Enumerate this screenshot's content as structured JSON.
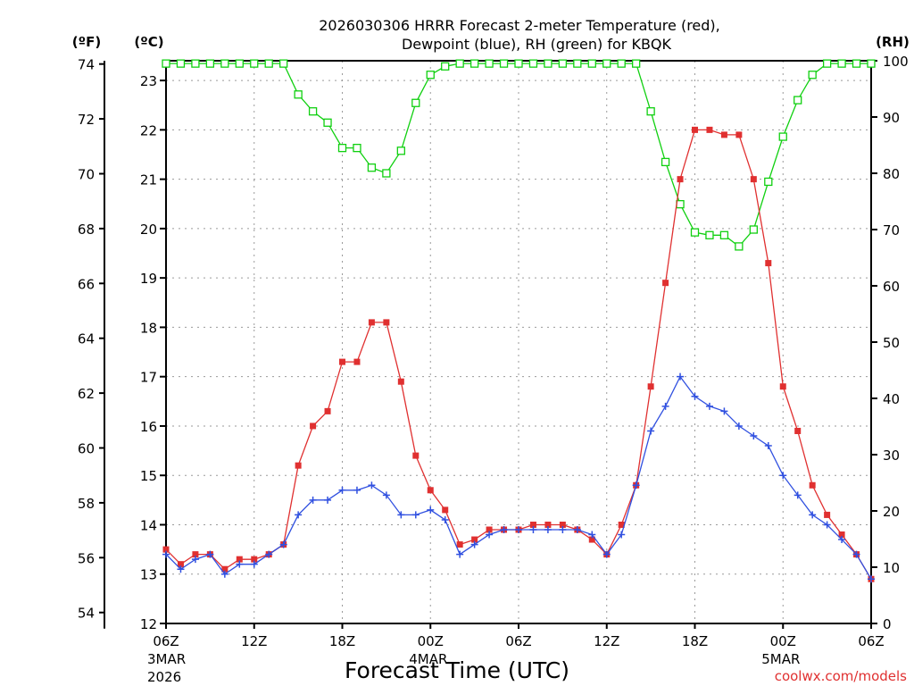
{
  "chart_data": {
    "type": "line",
    "title_lines": [
      "2026030306 HRRR Forecast 2-meter Temperature (red),",
      "Dewpoint (blue), RH (green) for KBQK"
    ],
    "xlabel": "Forecast Time (UTC)",
    "credit": "coolwx.com/models",
    "units": {
      "fahrenheit": "(ºF)",
      "celsius": "(ºC)",
      "rh": "(RH)"
    },
    "x_range_hours": [
      0,
      48
    ],
    "x_ticks": [
      {
        "hour": 0,
        "label": "06Z",
        "date_label": "3MAR",
        "year_label": "2026"
      },
      {
        "hour": 6,
        "label": "12Z"
      },
      {
        "hour": 12,
        "label": "18Z"
      },
      {
        "hour": 18,
        "label": "00Z",
        "date_label": "4MAR"
      },
      {
        "hour": 24,
        "label": "06Z"
      },
      {
        "hour": 30,
        "label": "12Z"
      },
      {
        "hour": 36,
        "label": "18Z"
      },
      {
        "hour": 42,
        "label": "00Z",
        "date_label": "5MAR"
      },
      {
        "hour": 48,
        "label": "06Z"
      }
    ],
    "y_celsius": {
      "range": [
        12,
        23.4
      ],
      "ticks": [
        "12",
        "13",
        "14",
        "15",
        "16",
        "17",
        "18",
        "19",
        "20",
        "21",
        "22",
        "23"
      ]
    },
    "y_fahrenheit": {
      "ticks": [
        "54",
        "56",
        "58",
        "60",
        "62",
        "64",
        "66",
        "68",
        "70",
        "72",
        "74"
      ]
    },
    "y_rh": {
      "range": [
        0,
        100
      ],
      "ticks": [
        "0",
        "10",
        "20",
        "30",
        "40",
        "50",
        "60",
        "70",
        "80",
        "90",
        "100"
      ]
    },
    "hours": [
      0,
      1,
      2,
      3,
      4,
      5,
      6,
      7,
      8,
      9,
      10,
      11,
      12,
      13,
      14,
      15,
      16,
      17,
      18,
      19,
      20,
      21,
      22,
      23,
      24,
      25,
      26,
      27,
      28,
      29,
      30,
      31,
      32,
      33,
      34,
      35,
      36,
      37,
      38,
      39,
      40,
      41,
      42,
      43,
      44,
      45,
      46,
      47,
      48
    ],
    "series": [
      {
        "name": "Temperature (red)",
        "unit": "C",
        "color": "#e03030",
        "marker": "filled-square",
        "values": [
          13.5,
          13.2,
          13.4,
          13.4,
          13.1,
          13.3,
          13.3,
          13.4,
          13.6,
          15.2,
          16.0,
          16.3,
          17.3,
          17.3,
          18.1,
          18.1,
          16.9,
          15.4,
          14.7,
          14.3,
          13.6,
          13.7,
          13.9,
          13.9,
          13.9,
          14.0,
          14.0,
          14.0,
          13.9,
          13.7,
          13.4,
          14.0,
          14.8,
          16.8,
          18.9,
          21.0,
          22.0,
          22.0,
          21.9,
          21.9,
          21.0,
          19.3,
          16.8,
          15.9,
          14.8,
          14.2,
          13.8,
          13.4,
          12.9
        ]
      },
      {
        "name": "Dewpoint (blue)",
        "unit": "C",
        "color": "#3050e0",
        "marker": "plus",
        "values": [
          13.4,
          13.1,
          13.3,
          13.4,
          13.0,
          13.2,
          13.2,
          13.4,
          13.6,
          14.2,
          14.5,
          14.5,
          14.7,
          14.7,
          14.8,
          14.6,
          14.2,
          14.2,
          14.3,
          14.1,
          13.4,
          13.6,
          13.8,
          13.9,
          13.9,
          13.9,
          13.9,
          13.9,
          13.9,
          13.8,
          13.4,
          13.8,
          14.8,
          15.9,
          16.4,
          17.0,
          16.6,
          16.4,
          16.3,
          16.0,
          15.8,
          15.6,
          15.0,
          14.6,
          14.2,
          14.0,
          13.7,
          13.4,
          12.9
        ]
      },
      {
        "name": "RH (green)",
        "unit": "%",
        "color": "#10d010",
        "marker": "open-square",
        "values": [
          99.5,
          99.5,
          99.5,
          99.5,
          99.5,
          99.5,
          99.5,
          99.5,
          99.5,
          94,
          91,
          89,
          84.5,
          84.5,
          81,
          80,
          84,
          92.5,
          97.5,
          99,
          99.5,
          99.5,
          99.5,
          99.5,
          99.5,
          99.5,
          99.5,
          99.5,
          99.5,
          99.5,
          99.5,
          99.5,
          99.5,
          91,
          82,
          74.5,
          69.5,
          69,
          69,
          67,
          70,
          78.5,
          86.5,
          93,
          97.5,
          99.5,
          99.5,
          99.5,
          99.5
        ]
      }
    ]
  }
}
